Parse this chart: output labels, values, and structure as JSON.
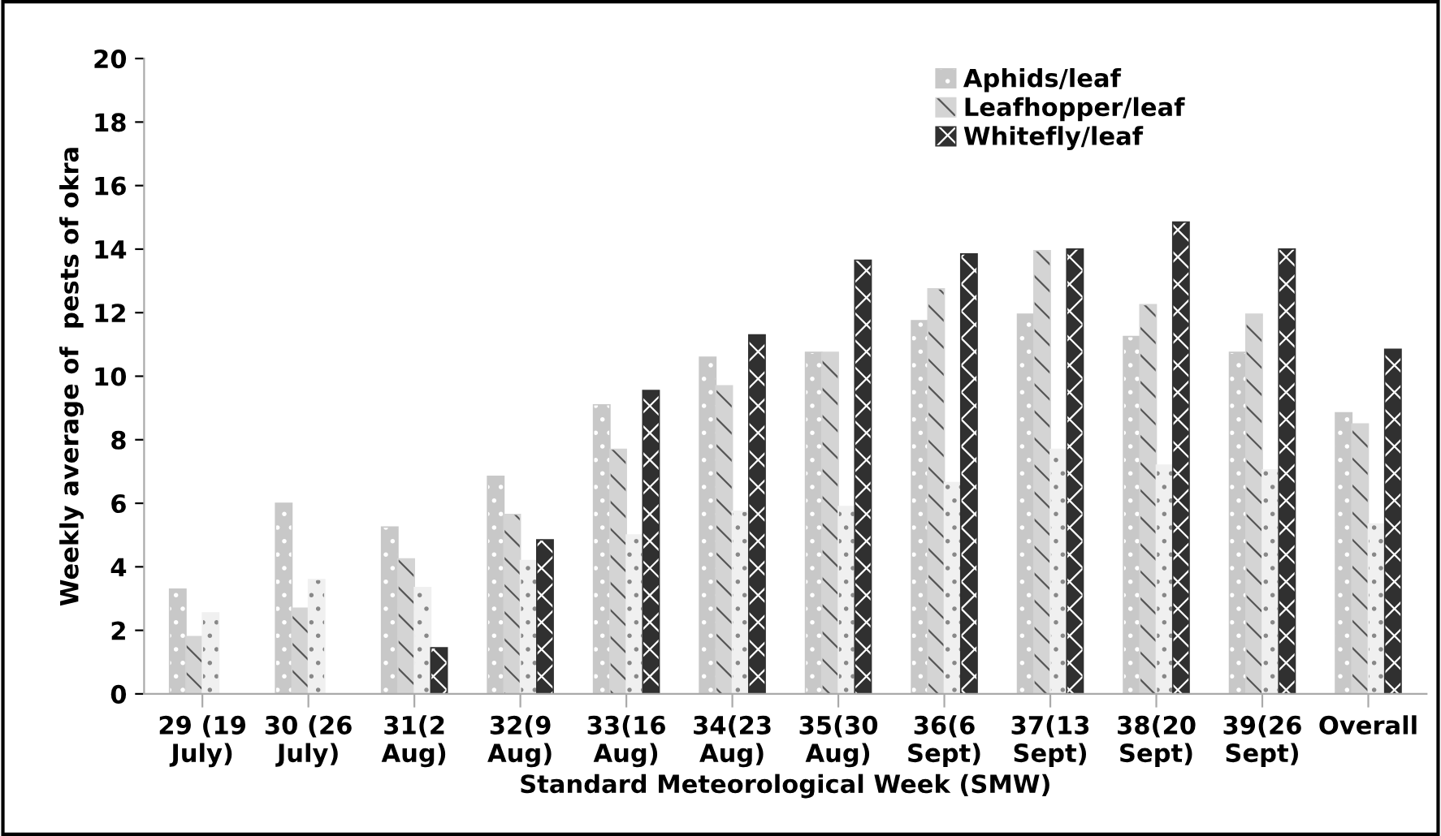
{
  "chart_data": {
    "type": "bar",
    "categories": [
      "29 (19\nJuly)",
      "30 (26\nJuly)",
      "31(2\nAug)",
      "32(9\nAug)",
      "33(16\nAug)",
      "34(23\nAug)",
      "35(30\nAug)",
      "36(6\nSept)",
      "37(13\nSept)",
      "38(20\nSept)",
      "39(26\nSept)",
      "Overall"
    ],
    "series": [
      {
        "name": "Aphids/leaf",
        "color": "#c8c8c8",
        "values": [
          3.3,
          6.0,
          5.25,
          6.85,
          9.1,
          10.6,
          10.75,
          11.75,
          11.95,
          11.25,
          10.75,
          8.85
        ]
      },
      {
        "name": "Leafhopper/leaf",
        "color": "#d4d4d4",
        "values": [
          1.8,
          2.7,
          4.25,
          5.65,
          7.7,
          9.7,
          10.75,
          12.75,
          13.95,
          12.25,
          11.95,
          8.5
        ]
      },
      {
        "color": "#f0f0f0",
        "values": [
          2.55,
          3.6,
          3.35,
          4.2,
          5.0,
          5.75,
          5.9,
          6.65,
          7.7,
          7.2,
          7.05,
          5.35
        ]
      },
      {
        "name": "Whitefly/leaf",
        "color": "#303030",
        "values": [
          null,
          null,
          1.45,
          4.85,
          9.55,
          11.3,
          13.65,
          13.85,
          14.0,
          14.85,
          14.0,
          10.85
        ]
      }
    ],
    "xlabel": "Standard Meteorological Week (SMW)",
    "ylabel": "Weekly average of  pests of okra",
    "ylim": [
      0,
      20
    ],
    "yticks": [
      0,
      2,
      4,
      6,
      8,
      10,
      12,
      14,
      16,
      18,
      20
    ],
    "grid": false,
    "legend": "top right"
  }
}
